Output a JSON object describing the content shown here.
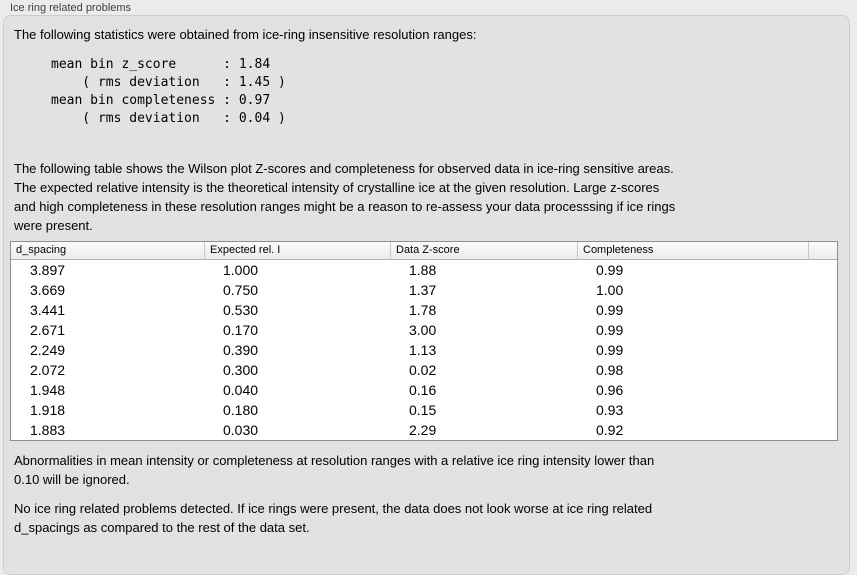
{
  "panel": {
    "title": "Ice ring related problems",
    "stats_intro": "The following statistics were obtained from ice-ring insensitive resolution ranges:",
    "stats_block": "mean bin z_score      : 1.84\n    ( rms deviation   : 1.45 )\nmean bin completeness : 0.97\n    ( rms deviation   : 0.04 )",
    "table_description": "The following table shows the Wilson plot Z-scores and completeness for observed data in ice-ring sensitive areas.\nThe expected relative intensity is the theoretical intensity of crystalline ice at the given resolution. Large z-scores\nand high completeness in these resolution ranges might be a reason to re-assess your data processsing if ice rings\nwere present.",
    "ignore_note": "Abnormalities in mean intensity or completeness at resolution ranges with a relative ice ring intensity lower than\n0.10 will be ignored.",
    "conclusion": "No ice ring related problems detected. If ice rings were present, the data does not look worse at ice ring related\nd_spacings as compared to the rest of the data set."
  },
  "table": {
    "columns": [
      "d_spacing",
      "Expected rel. I",
      "Data Z-score",
      "Completeness"
    ],
    "rows": [
      [
        "3.897",
        "1.000",
        "1.88",
        "0.99"
      ],
      [
        "3.669",
        "0.750",
        "1.37",
        "1.00"
      ],
      [
        "3.441",
        "0.530",
        "1.78",
        "0.99"
      ],
      [
        "2.671",
        "0.170",
        "3.00",
        "0.99"
      ],
      [
        "2.249",
        "0.390",
        "1.13",
        "0.99"
      ],
      [
        "2.072",
        "0.300",
        "0.02",
        "0.98"
      ],
      [
        "1.948",
        "0.040",
        "0.16",
        "0.96"
      ],
      [
        "1.918",
        "0.180",
        "0.15",
        "0.93"
      ],
      [
        "1.883",
        "0.030",
        "2.29",
        "0.92"
      ]
    ]
  }
}
